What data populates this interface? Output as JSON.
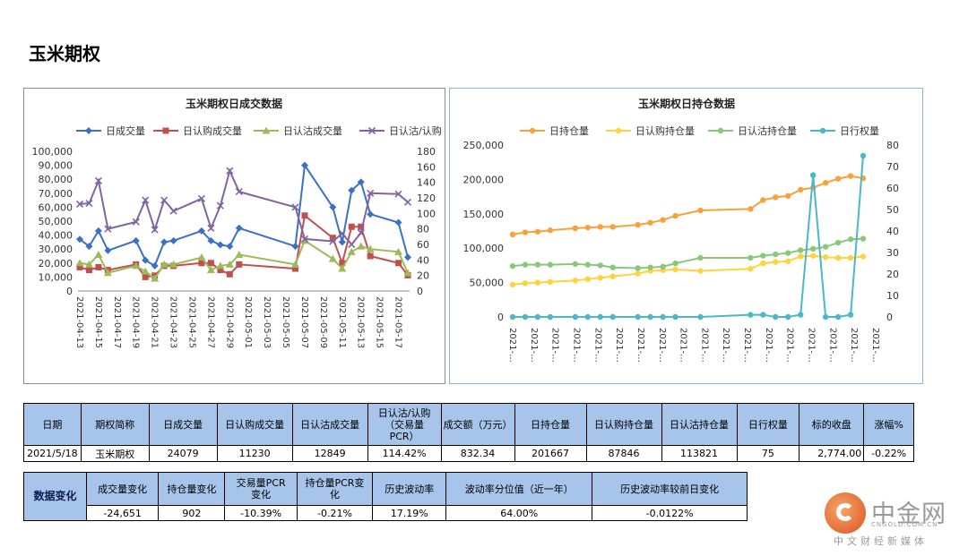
{
  "page": {
    "title": "玉米期权"
  },
  "chart_data": [
    {
      "type": "line",
      "title": "玉米期权日成交数据",
      "x": [
        "2021-04-13",
        "2021-04-14",
        "2021-04-15",
        "2021-04-16",
        "2021-04-19",
        "2021-04-20",
        "2021-04-21",
        "2021-04-22",
        "2021-04-23",
        "2021-04-26",
        "2021-04-27",
        "2021-04-28",
        "2021-04-29",
        "2021-04-30",
        "2021-05-06",
        "2021-05-07",
        "2021-05-10",
        "2021-05-11",
        "2021-05-12",
        "2021-05-13",
        "2021-05-14",
        "2021-05-17",
        "2021-05-18"
      ],
      "xtick_labels": [
        "2021-04-13",
        "2021-04-15",
        "2021-04-17",
        "2021-04-19",
        "2021-04-21",
        "2021-04-23",
        "2021-04-25",
        "2021-04-27",
        "2021-04-29",
        "2021-05-01",
        "2021-05-03",
        "2021-05-05",
        "2021-05-07",
        "2021-05-09",
        "2021-05-11",
        "2021-05-13",
        "2021-05-15",
        "2021-05-17"
      ],
      "ylim_left": [
        0,
        100000
      ],
      "yticks_left": [
        "0",
        "10,000",
        "20,000",
        "30,000",
        "40,000",
        "50,000",
        "60,000",
        "70,000",
        "80,000",
        "90,000",
        "100,000"
      ],
      "ylim_right": [
        0,
        180
      ],
      "yticks_right": [
        "0",
        "20",
        "40",
        "60",
        "80",
        "100",
        "120",
        "140",
        "160",
        "180"
      ],
      "grid": false,
      "legend": "top",
      "series": [
        {
          "name": "日成交量",
          "axis": "left",
          "color": "#3b70c4",
          "marker": "diamond",
          "values": [
            37000,
            32000,
            43000,
            29000,
            36000,
            22000,
            18000,
            35000,
            36000,
            43000,
            36000,
            33000,
            32000,
            45000,
            32000,
            90000,
            60000,
            35000,
            72000,
            78000,
            55000,
            49000,
            24079
          ]
        },
        {
          "name": "日认购成交量",
          "axis": "left",
          "color": "#c0504d",
          "marker": "square",
          "values": [
            17000,
            15000,
            17000,
            15000,
            19000,
            10000,
            11000,
            18000,
            18000,
            20000,
            20000,
            15000,
            12000,
            19000,
            16000,
            54000,
            38000,
            20000,
            46000,
            46000,
            25000,
            20000,
            11230
          ]
        },
        {
          "name": "日认沽成交量",
          "axis": "left",
          "color": "#9bbb59",
          "marker": "triangle",
          "values": [
            20000,
            19000,
            26000,
            13000,
            18000,
            14000,
            9000,
            19000,
            19000,
            24000,
            15000,
            18000,
            19000,
            26000,
            19000,
            36000,
            23000,
            16000,
            28000,
            32000,
            30000,
            28000,
            12849
          ]
        },
        {
          "name": "日认沽/认购",
          "axis": "right",
          "color": "#8064a2",
          "marker": "x",
          "values": [
            112,
            113,
            142,
            80,
            89,
            117,
            79,
            117,
            103,
            119,
            81,
            110,
            155,
            128,
            108,
            67,
            64,
            74,
            60,
            75,
            126,
            125,
            114.42
          ]
        }
      ]
    },
    {
      "type": "line",
      "title": "玉米期权日持仓数据",
      "xtick_labels": [
        "2021-…",
        "2021-…",
        "2021-…",
        "2021-…",
        "2021-…",
        "2021-…",
        "2021-…",
        "2021-…",
        "2021-…",
        "2021-…",
        "2021-…",
        "2021-…",
        "2021-…",
        "2021-…",
        "2021-…",
        "2021-…",
        "2021-…",
        "2021-…"
      ],
      "ylim_left": [
        0,
        250000
      ],
      "yticks_left": [
        "0",
        "50,000",
        "100,000",
        "150,000",
        "200,000",
        "250,000"
      ],
      "ylim_right": [
        0,
        80
      ],
      "yticks_right": [
        "0",
        "10",
        "20",
        "30",
        "40",
        "50",
        "60",
        "70",
        "80"
      ],
      "grid": false,
      "legend": "top",
      "x_index": [
        0,
        1,
        2,
        3,
        5,
        6,
        7,
        8,
        10,
        11,
        12,
        13,
        15,
        19,
        20,
        21,
        22,
        23,
        24,
        25,
        26,
        27,
        28
      ],
      "x_count": 30,
      "series": [
        {
          "name": "日持仓量",
          "axis": "left",
          "color": "#f7a13a",
          "marker": "circle",
          "values": [
            120000,
            123000,
            124000,
            126000,
            129000,
            130000,
            131000,
            131000,
            134000,
            137000,
            141000,
            147000,
            155000,
            157000,
            170000,
            174000,
            176000,
            185000,
            188000,
            195000,
            201000,
            205000,
            201667
          ]
        },
        {
          "name": "日认购持仓量",
          "axis": "left",
          "color": "#ffd23f",
          "marker": "circle",
          "values": [
            47000,
            49000,
            50000,
            51000,
            53000,
            55000,
            57000,
            59000,
            63000,
            67000,
            68000,
            69000,
            67000,
            70000,
            78000,
            80000,
            81000,
            88000,
            89000,
            87000,
            86000,
            86000,
            87846
          ]
        },
        {
          "name": "日认沽持仓量",
          "axis": "left",
          "color": "#8bc77a",
          "marker": "circle",
          "values": [
            74000,
            76000,
            76000,
            76000,
            77000,
            76000,
            75000,
            72000,
            71000,
            72000,
            73000,
            78000,
            86000,
            86000,
            89000,
            91000,
            93000,
            97000,
            99000,
            102000,
            108000,
            113000,
            113821
          ]
        },
        {
          "name": "日行权量",
          "axis": "right",
          "color": "#4bb8c8",
          "marker": "circle",
          "values": [
            0,
            0,
            0,
            0,
            0,
            0,
            0,
            0,
            0,
            0,
            0,
            0,
            0,
            1,
            1,
            0,
            0,
            1,
            66,
            0,
            0,
            1,
            75
          ]
        }
      ]
    }
  ],
  "table1": {
    "headers": [
      "日期",
      "期权简称",
      "日成交量",
      "日认购成交量",
      "日认沽成交量",
      "日认沽/认购\n（交易量\nPCR）",
      "成交额（万元）",
      "日持仓量",
      "日认购持仓量",
      "日认沽持仓量",
      "日行权量",
      "标的收盘",
      "涨幅%"
    ],
    "row": [
      "2021/5/18",
      "玉米期权",
      "24079",
      "11230",
      "12849",
      "114.42%",
      "832.34",
      "201667",
      "87846",
      "113821",
      "75",
      "2,774.00",
      "-0.22%"
    ]
  },
  "table2": {
    "side_label": "数据变化",
    "headers": [
      "成交量变化",
      "持仓量变化",
      "交易量PCR\n变化",
      "持仓量PCR变\n化",
      "历史波动率",
      "波动率分位值（近一年）",
      "历史波动率较前日变化"
    ],
    "row": [
      "-24,651",
      "902",
      "-10.39%",
      "-0.21%",
      "17.19%",
      "64.00%",
      "-0.0122%"
    ]
  },
  "watermark": {
    "name": "中金网",
    "sub": "CNGOLD.COM.CN",
    "tagline": "中文财经新媒体",
    "colors": {
      "accent": "#e05a24"
    }
  }
}
